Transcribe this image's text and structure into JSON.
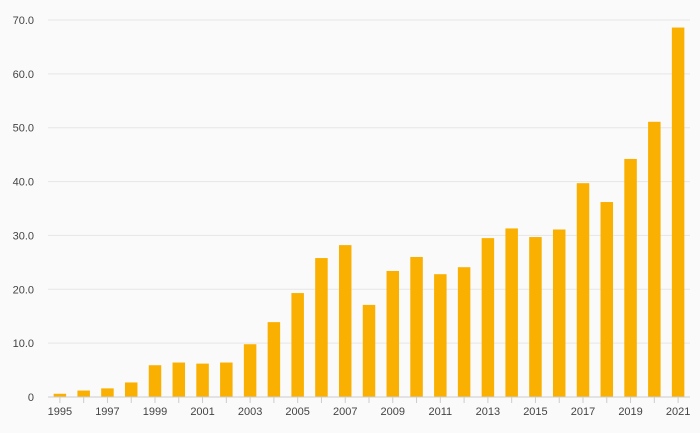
{
  "chart_data": {
    "type": "bar",
    "title": "",
    "xlabel": "",
    "ylabel": "",
    "ylim": [
      0,
      70
    ],
    "y_ticks": [
      0,
      10,
      20,
      30,
      40,
      50,
      60,
      70
    ],
    "y_tick_labels": [
      "0",
      "10.0",
      "20.0",
      "30.0",
      "40.0",
      "50.0",
      "60.0",
      "70.0"
    ],
    "grid": true,
    "bar_color": "#f9b000",
    "categories": [
      "1995",
      "1996",
      "1997",
      "1998",
      "1999",
      "2000",
      "2001",
      "2002",
      "2003",
      "2004",
      "2005",
      "2006",
      "2007",
      "2008",
      "2009",
      "2010",
      "2011",
      "2012",
      "2013",
      "2014",
      "2015",
      "2016",
      "2017",
      "2018",
      "2019",
      "2020",
      "2021"
    ],
    "x_tick_labels": [
      "1995",
      "1997",
      "1999",
      "2001",
      "2003",
      "2005",
      "2007",
      "2009",
      "2011",
      "2013",
      "2015",
      "2017",
      "2019",
      "2021"
    ],
    "values": [
      0.6,
      1.2,
      1.6,
      2.7,
      5.9,
      6.4,
      6.2,
      6.4,
      9.8,
      13.9,
      19.3,
      25.8,
      28.2,
      17.1,
      23.4,
      26.0,
      22.8,
      24.1,
      29.5,
      31.3,
      29.7,
      31.1,
      39.7,
      36.2,
      44.2,
      51.1,
      68.6
    ]
  }
}
